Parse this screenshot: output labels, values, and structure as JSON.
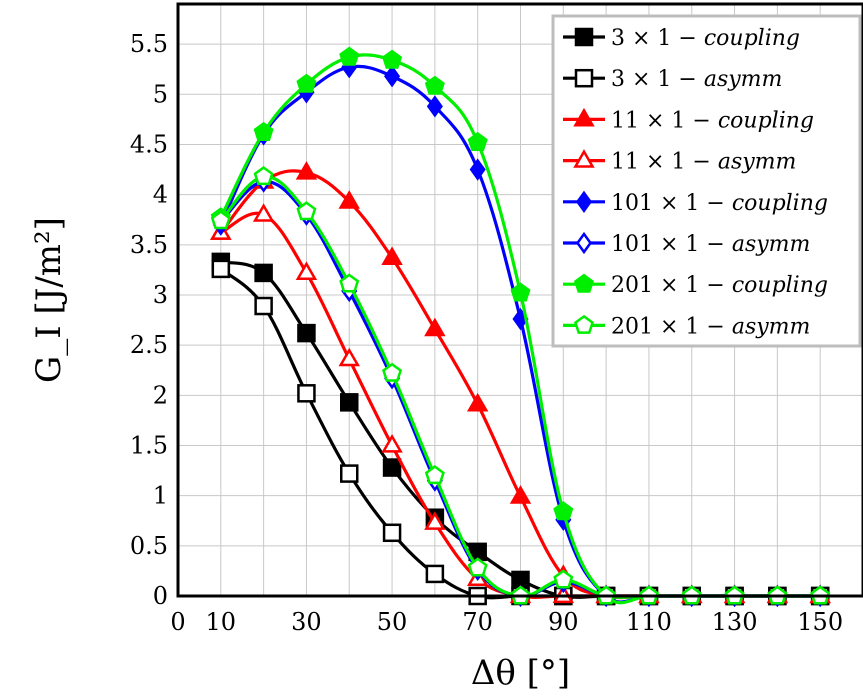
{
  "chart_data": {
    "type": "line",
    "xlabel": "Δθ [°]",
    "ylabel": "G_I [J/m²]",
    "xlim": [
      0,
      160
    ],
    "ylim": [
      0,
      5.9
    ],
    "x_ticks": [
      "0",
      "10",
      "30",
      "50",
      "70",
      "90",
      "110",
      "130",
      "150"
    ],
    "x_tick_values": [
      0,
      10,
      30,
      50,
      70,
      90,
      110,
      130,
      150
    ],
    "y_ticks": [
      "0",
      "0.5",
      "1",
      "1.5",
      "2",
      "2.5",
      "3",
      "3.5",
      "4",
      "4.5",
      "5",
      "5.5"
    ],
    "y_tick_values": [
      0,
      0.5,
      1,
      1.5,
      2,
      2.5,
      3,
      3.5,
      4,
      4.5,
      5,
      5.5
    ],
    "grid": true,
    "legend_position": "top-right",
    "x": [
      10,
      20,
      30,
      40,
      50,
      60,
      70,
      80,
      90,
      100,
      110,
      120,
      130,
      140,
      150
    ],
    "series": [
      {
        "name": "3 × 1 − coupling",
        "prefix": "3 × 1 − ",
        "suffix": "coupling",
        "color": "#000000",
        "marker": "square",
        "filled": true,
        "values": [
          3.33,
          3.22,
          2.62,
          1.93,
          1.28,
          0.78,
          0.44,
          0.16,
          0.0,
          0.0,
          0.0,
          0.0,
          0.0,
          0.0,
          0.0
        ]
      },
      {
        "name": "3 × 1 − asymm",
        "prefix": "3 × 1 − ",
        "suffix": "asymm",
        "color": "#000000",
        "marker": "square",
        "filled": false,
        "values": [
          3.26,
          2.89,
          2.02,
          1.22,
          0.63,
          0.22,
          0.0,
          0.0,
          0.0,
          0.0,
          0.0,
          0.0,
          0.0,
          0.0,
          0.0
        ]
      },
      {
        "name": "11 × 1 − coupling",
        "prefix": "11 × 1 − ",
        "suffix": "coupling",
        "color": "#ff0000",
        "marker": "triangle",
        "filled": true,
        "values": [
          3.62,
          4.13,
          4.22,
          3.93,
          3.37,
          2.66,
          1.91,
          0.99,
          0.2,
          0.0,
          0.0,
          0.0,
          0.0,
          0.0,
          0.0
        ]
      },
      {
        "name": "11 × 1 − asymm",
        "prefix": "11 × 1 − ",
        "suffix": "asymm",
        "color": "#ff0000",
        "marker": "triangle",
        "filled": false,
        "values": [
          3.62,
          3.8,
          3.22,
          2.36,
          1.5,
          0.73,
          0.17,
          0.0,
          0.0,
          0.0,
          0.0,
          0.0,
          0.0,
          0.0,
          0.0
        ]
      },
      {
        "name": "101 × 1 − coupling",
        "prefix": "101 × 1 − ",
        "suffix": "coupling",
        "color": "#0000ff",
        "marker": "diamond",
        "filled": true,
        "values": [
          3.7,
          4.6,
          5.02,
          5.27,
          5.18,
          4.88,
          4.25,
          2.76,
          0.76,
          0.0,
          0.0,
          0.0,
          0.0,
          0.0,
          0.0
        ]
      },
      {
        "name": "101 × 1 − asymm",
        "prefix": "101 × 1 − ",
        "suffix": "asymm",
        "color": "#0000ff",
        "marker": "diamond",
        "filled": false,
        "values": [
          3.73,
          4.13,
          3.8,
          3.04,
          2.17,
          1.15,
          0.26,
          0.0,
          0.14,
          0.0,
          0.0,
          0.0,
          0.0,
          0.0,
          0.0
        ]
      },
      {
        "name": "201 × 1 − coupling",
        "prefix": "201 × 1 − ",
        "suffix": "coupling",
        "color": "#00ee00",
        "marker": "pentagon",
        "filled": true,
        "values": [
          3.77,
          4.62,
          5.1,
          5.37,
          5.34,
          5.08,
          4.52,
          3.02,
          0.84,
          0.0,
          0.0,
          0.0,
          0.0,
          0.0,
          0.0
        ]
      },
      {
        "name": "201 × 1 − asymm",
        "prefix": "201 × 1 − ",
        "suffix": "asymm",
        "color": "#00ee00",
        "marker": "pentagon",
        "filled": false,
        "values": [
          3.74,
          4.18,
          3.83,
          3.11,
          2.22,
          1.2,
          0.28,
          0.0,
          0.16,
          0.0,
          0.0,
          0.0,
          0.0,
          0.0,
          0.0
        ]
      }
    ]
  }
}
